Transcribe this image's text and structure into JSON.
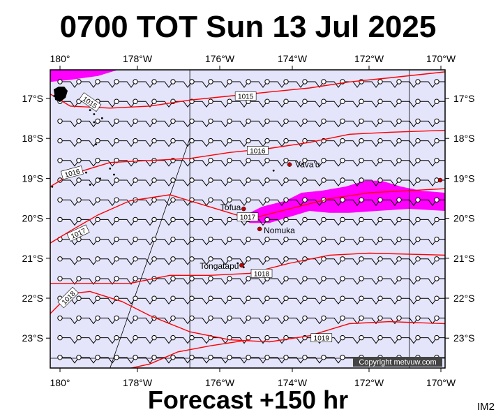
{
  "header": {
    "title": "0700 TOT Sun 13 Jul 2025"
  },
  "footer": {
    "forecast_label": "Forecast +150 hr",
    "product_code": "IM2"
  },
  "map": {
    "lon_range": [
      180.0,
      189.9
    ],
    "lat_range": [
      -16.3,
      -23.7
    ],
    "lon_ticks": [
      "180°",
      "178°W",
      "176°W",
      "174°W",
      "172°W",
      "170°W"
    ],
    "lat_ticks": [
      "17°S",
      "18°S",
      "19°S",
      "20°S",
      "21°S",
      "22°S",
      "23°S"
    ],
    "copyright": "Copyright metvuw.com",
    "colors": {
      "ocean": "#e4e4fb",
      "rain": "#ff00ff",
      "isobar": "#ff0000",
      "land": "#000000"
    },
    "places": [
      {
        "name": "Vava'u",
        "lon": 186.0,
        "lat": -18.65
      },
      {
        "name": "Tofua",
        "lon": 184.85,
        "lat": -19.75
      },
      {
        "name": "Nomuka",
        "lon": 185.25,
        "lat": -20.25
      },
      {
        "name": "Tongatapu",
        "lon": 184.8,
        "lat": -21.15
      }
    ],
    "isobars": [
      {
        "label": "1015",
        "label_at": [
          184.9,
          -16.95
        ],
        "points": [
          [
            180.0,
            -16.9
          ],
          [
            180.5,
            -17.2
          ],
          [
            181.5,
            -17.25
          ],
          [
            182.5,
            -17.2
          ],
          [
            183.5,
            -17.05
          ],
          [
            184.5,
            -16.95
          ],
          [
            185.5,
            -16.85
          ],
          [
            186.5,
            -16.75
          ],
          [
            187.5,
            -16.6
          ],
          [
            188.5,
            -16.5
          ],
          [
            189.9,
            -16.35
          ]
        ]
      },
      {
        "label": "1016",
        "label_at": [
          185.2,
          -18.3
        ],
        "points": [
          [
            180.0,
            -19.2
          ],
          [
            180.5,
            -18.9
          ],
          [
            181.5,
            -18.6
          ],
          [
            182.5,
            -18.55
          ],
          [
            183.5,
            -18.5
          ],
          [
            184.5,
            -18.35
          ],
          [
            185.5,
            -18.25
          ],
          [
            186.5,
            -18.1
          ],
          [
            187.5,
            -17.9
          ],
          [
            188.5,
            -17.85
          ],
          [
            189.9,
            -17.8
          ]
        ]
      },
      {
        "label": "1017",
        "label_at": [
          184.95,
          -19.95
        ],
        "points": [
          [
            180.0,
            -20.6
          ],
          [
            180.5,
            -20.3
          ],
          [
            181.2,
            -19.9
          ],
          [
            182,
            -19.55
          ],
          [
            183,
            -19.4
          ],
          [
            184,
            -19.7
          ],
          [
            185,
            -20.0
          ],
          [
            186,
            -19.75
          ],
          [
            187,
            -19.5
          ],
          [
            188,
            -19.35
          ],
          [
            189.9,
            -19.25
          ]
        ]
      },
      {
        "label": "1018",
        "label_at": [
          185.3,
          -21.35
        ],
        "points": [
          [
            180.0,
            -21.6
          ],
          [
            181,
            -21.6
          ],
          [
            182,
            -21.6
          ],
          [
            183,
            -21.4
          ],
          [
            184,
            -21.4
          ],
          [
            185,
            -21.35
          ],
          [
            186,
            -21.1
          ],
          [
            187,
            -20.9
          ],
          [
            188,
            -20.85
          ],
          [
            189.9,
            -20.9
          ]
        ]
      },
      {
        "label": "1019",
        "label_at": [
          186.8,
          -22.95
        ],
        "points": [
          [
            180.0,
            -22.35
          ],
          [
            180.5,
            -21.85
          ],
          [
            181,
            -21.8
          ],
          [
            181.8,
            -22.05
          ],
          [
            182.5,
            -22.4
          ],
          [
            183.5,
            -22.8
          ],
          [
            184.5,
            -23.0
          ],
          [
            185.5,
            -23.05
          ],
          [
            186.5,
            -22.9
          ],
          [
            187.5,
            -22.6
          ],
          [
            188.5,
            -22.55
          ],
          [
            189.9,
            -22.6
          ]
        ]
      },
      {
        "label": "",
        "label_at": null,
        "points": [
          [
            181.8,
            -23.75
          ],
          [
            182.5,
            -23.6
          ],
          [
            183.2,
            -23.3
          ],
          [
            184,
            -23.15
          ],
          [
            185,
            -23.0
          ]
        ]
      }
    ],
    "rain_areas": [
      {
        "points": [
          [
            180.0,
            -16.3
          ],
          [
            181.7,
            -16.3
          ],
          [
            181.2,
            -16.45
          ],
          [
            180.5,
            -16.55
          ],
          [
            180.0,
            -16.6
          ]
        ]
      },
      {
        "points": [
          [
            184.8,
            -19.95
          ],
          [
            185.3,
            -19.7
          ],
          [
            185.9,
            -19.55
          ],
          [
            186.3,
            -19.35
          ],
          [
            186.8,
            -19.3
          ],
          [
            187.4,
            -19.2
          ],
          [
            187.9,
            -19.05
          ],
          [
            188.3,
            -19.05
          ],
          [
            188.8,
            -19.2
          ],
          [
            189.3,
            -19.3
          ],
          [
            189.9,
            -19.35
          ],
          [
            189.9,
            -19.8
          ],
          [
            189.0,
            -19.75
          ],
          [
            188.2,
            -19.8
          ],
          [
            187.5,
            -19.85
          ],
          [
            187.0,
            -19.85
          ],
          [
            186.5,
            -19.8
          ],
          [
            186.0,
            -19.95
          ],
          [
            185.5,
            -20.1
          ],
          [
            185.0,
            -20.1
          ]
        ]
      }
    ],
    "land_dots": [
      [
        180.25,
        -16.85
      ],
      [
        180.35,
        -16.75
      ],
      [
        180.1,
        -16.95
      ],
      [
        181.0,
        -17.3
      ],
      [
        181.1,
        -17.4
      ],
      [
        181.1,
        -17.6
      ],
      [
        181.3,
        -17.5
      ],
      [
        181.15,
        -18.15
      ],
      [
        181.25,
        -19.0
      ],
      [
        181.0,
        -19.15
      ],
      [
        181.5,
        -18.75
      ],
      [
        181.6,
        -18.9
      ],
      [
        180.9,
        -18.85
      ],
      [
        180.05,
        -19.2
      ],
      [
        185.6,
        -18.8
      ],
      [
        184.85,
        -19.75
      ],
      [
        185.25,
        -20.25
      ],
      [
        184.7,
        -21.1
      ],
      [
        184.85,
        -21.2
      ]
    ]
  }
}
